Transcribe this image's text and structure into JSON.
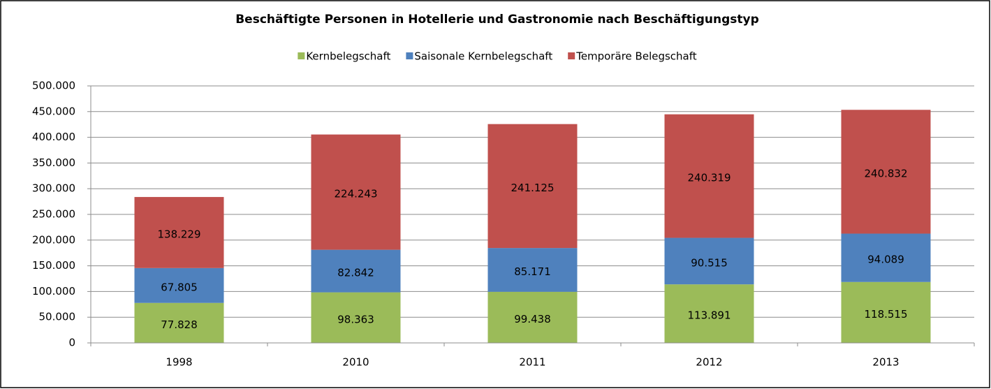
{
  "chart_data": {
    "type": "stacked_bar",
    "title": "Beschäftigte Personen in Hotellerie und Gastronomie nach Beschäftigungstyp",
    "categories": [
      "1998",
      "2010",
      "2011",
      "2012",
      "2013"
    ],
    "series": [
      {
        "name": "Kernbelegschaft",
        "color": "#9bbb59",
        "values": [
          77828,
          98363,
          99438,
          113891,
          118515
        ],
        "value_labels": [
          "77.828",
          "98.363",
          "99.438",
          "113.891",
          "118.515"
        ]
      },
      {
        "name": "Saisonale Kernbelegschaft",
        "color": "#4f81bd",
        "values": [
          67805,
          82842,
          85171,
          90515,
          94089
        ],
        "value_labels": [
          "67.805",
          "82.842",
          "85.171",
          "90.515",
          "94.089"
        ]
      },
      {
        "name": "Temporäre Belegschaft",
        "color": "#c0504d",
        "values": [
          138229,
          224243,
          241125,
          240319,
          240832
        ],
        "value_labels": [
          "138.229",
          "224.243",
          "241.125",
          "240.319",
          "240.832"
        ]
      }
    ],
    "ylim": [
      0,
      500000
    ],
    "yticks": [
      0,
      {
        "value": 50000,
        "label": "50.000"
      },
      {
        "value": 100000,
        "label": "100.000"
      },
      {
        "value": 150000,
        "label": "150.000"
      },
      {
        "value": 200000,
        "label": "200.000"
      },
      {
        "value": 250000,
        "label": "250.000"
      },
      {
        "value": 300000,
        "label": "300.000"
      },
      {
        "value": 350000,
        "label": "350.000"
      },
      {
        "value": 400000,
        "label": "400.000"
      },
      {
        "value": 450000,
        "label": "450.000"
      },
      {
        "value": 500000,
        "label": "500.000"
      }
    ],
    "grid": true,
    "legend": "top"
  }
}
